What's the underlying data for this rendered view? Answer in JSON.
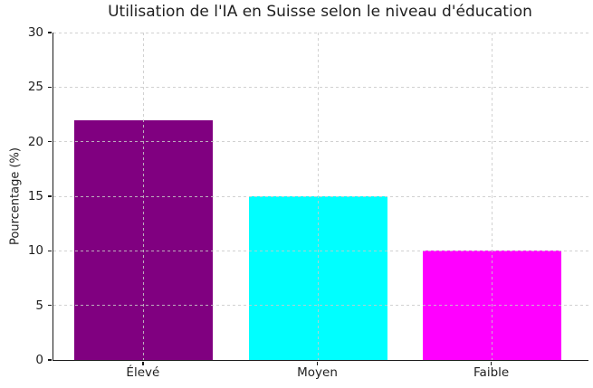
{
  "title": "Utilisation de l'IA en Suisse selon le niveau d'éducation",
  "chart_data": {
    "type": "bar",
    "title": "Utilisation de l'IA en Suisse selon le niveau d'éducation",
    "categories": [
      "Élevé",
      "Moyen",
      "Faible"
    ],
    "values": [
      22,
      15,
      10
    ],
    "bar_colors": [
      "#800080",
      "#00ffff",
      "#ff00ff"
    ],
    "xlabel": "",
    "ylabel": "Pourcentage (%)",
    "ylim": [
      0,
      30
    ],
    "yticks": [
      0,
      5,
      10,
      15,
      20,
      25,
      30
    ],
    "grid": "dashed light-gray gridlines on both axes, drawn over bars",
    "legend": "none",
    "background_color": "#ffffff",
    "text_color": "#1f1f1f"
  }
}
